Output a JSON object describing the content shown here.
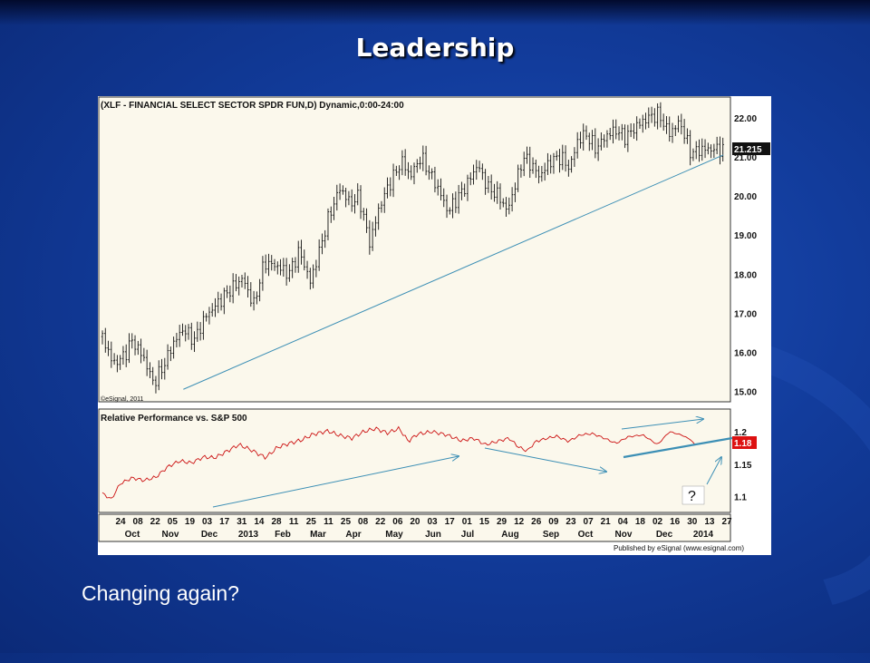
{
  "slide": {
    "title": "Leadership",
    "caption": "Changing again?"
  },
  "colors": {
    "background": "#123c9c",
    "panel_bg": "#fbf8ec",
    "price_bars": "#111111",
    "trendline": "#3c8fb5",
    "rel_line": "#cc1111",
    "arrow": "#3c8fb5",
    "price_tag_bg": "#111111",
    "rel_tag_bg": "#dd1111"
  },
  "chart_data": [
    {
      "type": "ohlc",
      "title": "(XLF - FINANCIAL SELECT SECTOR SPDR FUN,D) Dynamic,0:00-24:00",
      "watermark": "©eSignal, 2011",
      "ylim": [
        14.8,
        22.35
      ],
      "y_ticks": [
        "22.00",
        "21.00",
        "20.00",
        "19.00",
        "18.00",
        "17.00",
        "16.00",
        "15.00"
      ],
      "y_tick_values": [
        22,
        21,
        20,
        19,
        18,
        17,
        16,
        15
      ],
      "last_value_label": "21.215",
      "last_value": 21.215,
      "x": [
        0,
        8,
        16,
        22,
        30,
        38,
        46,
        52,
        60,
        68,
        76,
        84,
        92,
        98,
        104,
        112,
        120,
        130,
        138,
        146,
        154,
        160,
        168,
        176,
        184,
        190,
        198,
        206,
        214,
        222,
        228,
        236,
        244,
        250,
        256,
        262,
        270,
        278,
        286,
        294,
        300,
        306,
        312,
        318,
        324,
        332,
        340,
        346,
        352,
        358,
        366,
        372,
        380,
        388,
        396,
        404,
        412,
        420,
        428,
        436,
        444,
        452,
        460
      ],
      "close": [
        16.4,
        15.7,
        15.9,
        16.3,
        15.9,
        15.2,
        15.7,
        16.2,
        16.6,
        16.3,
        16.9,
        17.2,
        17.5,
        17.7,
        17.9,
        17.2,
        18.3,
        18.2,
        18.0,
        18.6,
        17.8,
        18.5,
        19.5,
        20.2,
        19.8,
        20.0,
        18.8,
        19.8,
        20.4,
        20.9,
        20.5,
        21.0,
        20.5,
        20.1,
        19.6,
        19.9,
        20.3,
        20.8,
        20.2,
        20.0,
        19.6,
        20.3,
        21.0,
        20.8,
        20.5,
        20.9,
        21.0,
        20.7,
        21.4,
        21.6,
        21.2,
        21.5,
        21.7,
        21.5,
        21.8,
        22.0,
        22.1,
        21.6,
        21.9,
        21.1,
        21.2,
        21.2,
        21.2
      ],
      "trendline": {
        "x": [
          60,
          460
        ],
        "y": [
          15.05,
          21.05
        ]
      }
    },
    {
      "type": "line",
      "title": "Relative Performance vs. S&P 500",
      "series": [
        {
          "values": [
            1.105,
            1.096,
            1.12,
            1.129,
            1.125,
            1.13,
            1.146,
            1.155,
            1.152,
            1.161,
            1.16,
            1.17,
            1.18,
            1.172,
            1.16,
            1.176,
            1.182,
            1.187,
            1.196,
            1.201,
            1.194,
            1.19,
            1.2,
            1.205,
            1.198,
            1.205,
            1.185,
            1.196,
            1.2,
            1.195,
            1.186,
            1.19,
            1.18,
            1.185,
            1.19,
            1.177,
            1.17,
            1.185,
            1.19,
            1.193,
            1.185,
            1.195,
            1.197,
            1.19,
            1.182,
            1.192,
            1.195,
            1.18,
            1.2,
            1.195,
            1.188,
            1.178
          ]
        }
      ],
      "x": [
        0,
        6,
        12,
        20,
        28,
        36,
        44,
        52,
        60,
        68,
        76,
        84,
        92,
        100,
        110,
        118,
        126,
        134,
        142,
        152,
        160,
        168,
        176,
        184,
        192,
        200,
        206,
        212,
        222,
        232,
        242,
        250,
        258,
        266,
        274,
        280,
        286,
        292,
        300,
        306,
        314,
        322,
        330,
        338,
        346,
        354,
        364,
        374,
        382,
        390,
        396,
        400
      ],
      "ylim": [
        1.08,
        1.225
      ],
      "y_ticks": [
        "1.2",
        "1.15",
        "1.1"
      ],
      "y_tick_values": [
        1.2,
        1.15,
        1.1
      ],
      "last_value_label": "1.18",
      "last_value": 1.18,
      "annotation": "?"
    }
  ],
  "x_axis": {
    "days": [
      "24",
      "08",
      "22",
      "05",
      "19",
      "03",
      "17",
      "31",
      "14",
      "28",
      "11",
      "25",
      "11",
      "25",
      "08",
      "22",
      "06",
      "20",
      "03",
      "17",
      "01",
      "15",
      "29",
      "12",
      "26",
      "09",
      "23",
      "07",
      "21",
      "04",
      "18",
      "02",
      "16",
      "30",
      "13",
      "27"
    ],
    "months": [
      "Oct",
      "Nov",
      "Dec",
      "2013",
      "Feb",
      "Mar",
      "Apr",
      "May",
      "Jun",
      "Jul",
      "Aug",
      "Sep",
      "Oct",
      "Nov",
      "Dec",
      "2014"
    ]
  },
  "footer": {
    "credit": "Published by eSignal (www.esignal.com)"
  }
}
